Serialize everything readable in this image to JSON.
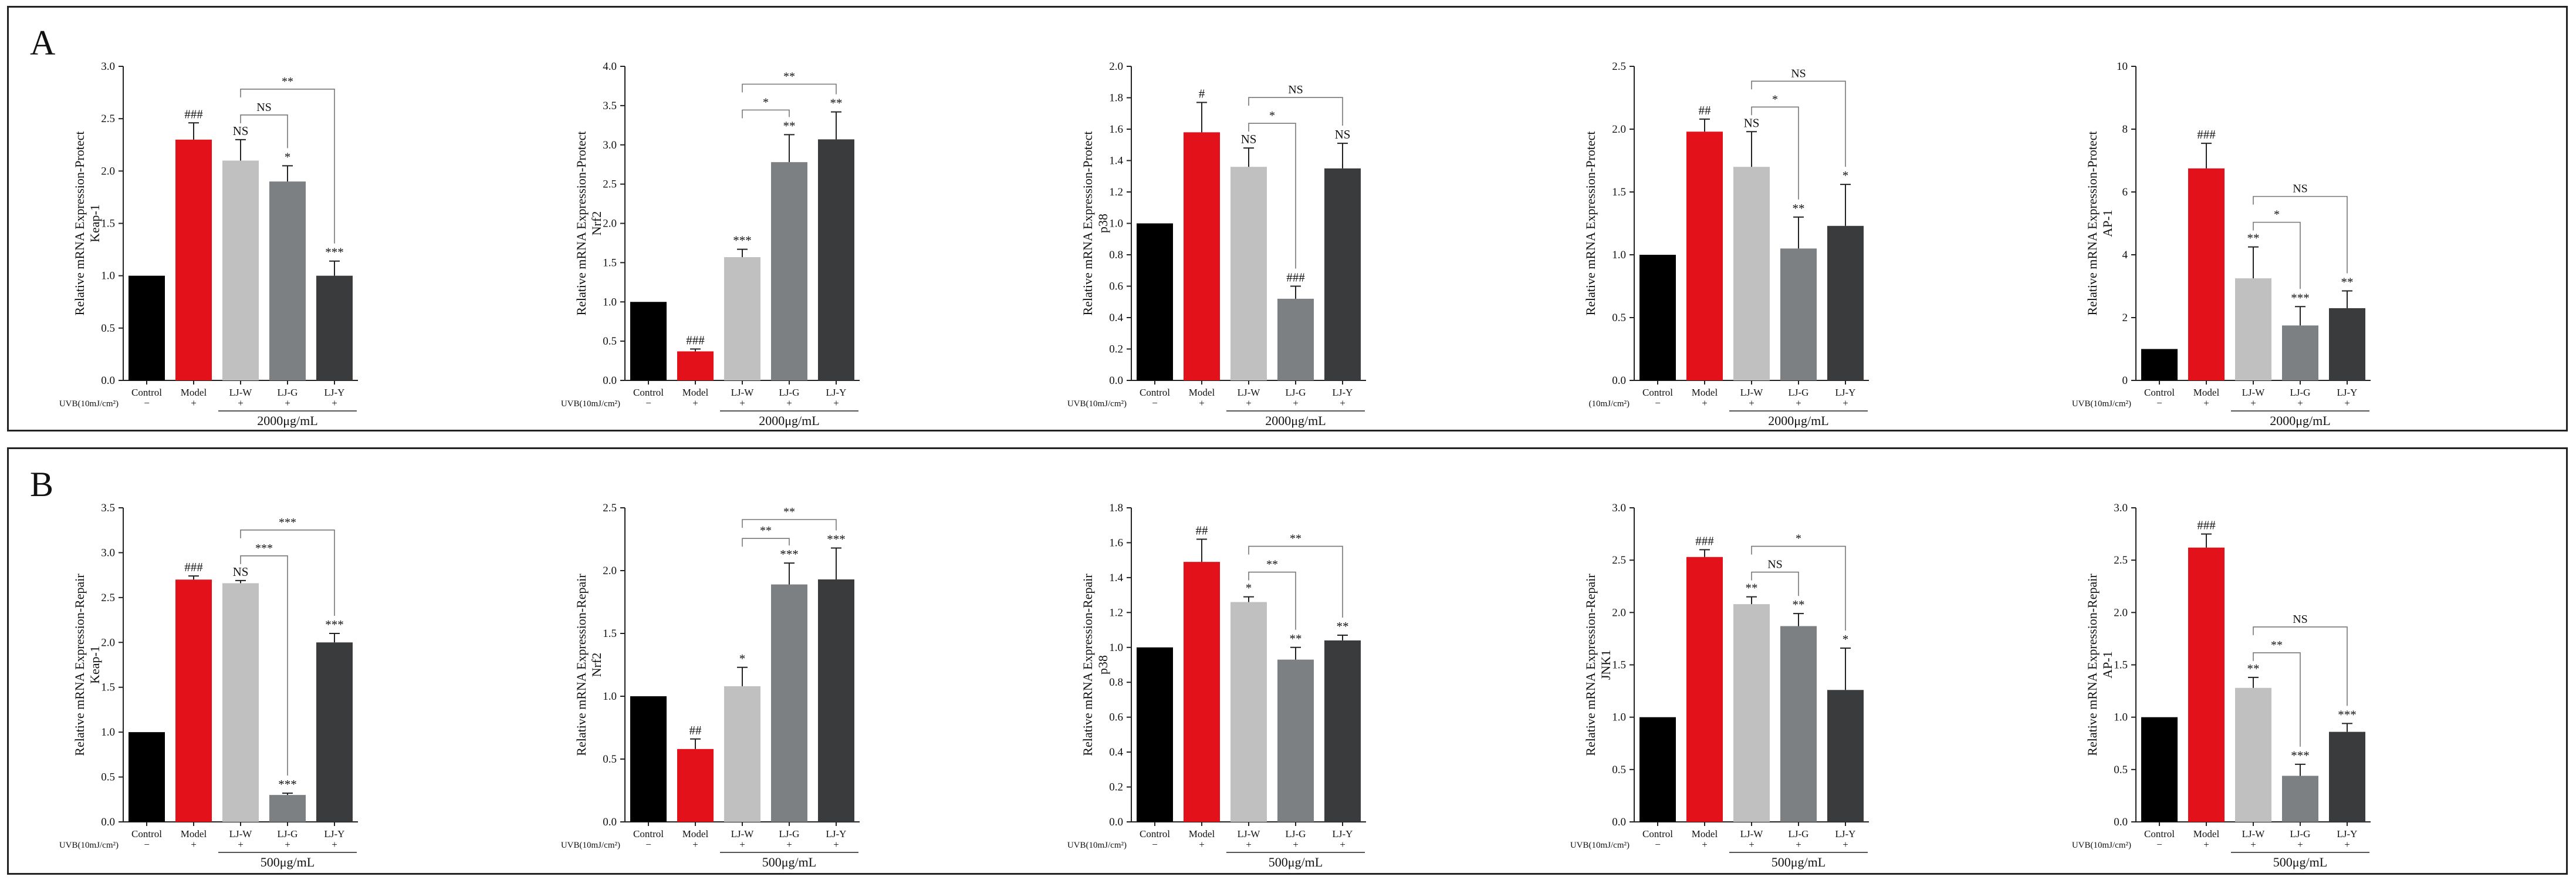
{
  "figure": {
    "panels": [
      {
        "letter": "A"
      },
      {
        "letter": "B"
      }
    ]
  },
  "chart_data": [
    {
      "panel": "A",
      "type": "bar",
      "title": "",
      "ylabel_lines": [
        "Relative mRNA Expression-Protect",
        "Keap-1"
      ],
      "ylim": [
        0,
        3.0
      ],
      "yticks": [
        "0.0",
        "0.5",
        "1.0",
        "1.5",
        "2.0",
        "2.5",
        "3.0"
      ],
      "categories": [
        "Control",
        "Model",
        "LJ-W",
        "LJ-G",
        "LJ-Y"
      ],
      "values": [
        1.0,
        2.3,
        2.1,
        1.9,
        1.0
      ],
      "errors": [
        0,
        0.16,
        0.2,
        0.15,
        0.14
      ],
      "colors": [
        "#000000",
        "#e2111a",
        "#c0c0c0",
        "#7d8082",
        "#3a3b3d"
      ],
      "point_labels": [
        "",
        "###",
        "NS",
        "*",
        "***"
      ],
      "treatment_label": "UVB(10mJ/cm²)",
      "treatment_signs": [
        "−",
        "+",
        "+",
        "+",
        "+"
      ],
      "dose_label": "2000μg/mL",
      "comparisons": [
        {
          "from": 2,
          "to": 3,
          "label": "NS"
        },
        {
          "from": 2,
          "to": 4,
          "label": "**"
        }
      ]
    },
    {
      "panel": "A",
      "type": "bar",
      "title": "",
      "ylabel_lines": [
        "Relative mRNA Expression-Protect",
        "Nrf2"
      ],
      "ylim": [
        0,
        4.0
      ],
      "yticks": [
        "0.0",
        "0.5",
        "1.0",
        "1.5",
        "2.0",
        "2.5",
        "3.0",
        "3.5",
        "4.0"
      ],
      "categories": [
        "Control",
        "Model",
        "LJ-W",
        "LJ-G",
        "LJ-Y"
      ],
      "values": [
        1.0,
        0.37,
        1.57,
        2.78,
        3.07
      ],
      "errors": [
        0,
        0.03,
        0.1,
        0.35,
        0.35
      ],
      "colors": [
        "#000000",
        "#e2111a",
        "#c0c0c0",
        "#7d8082",
        "#3a3b3d"
      ],
      "point_labels": [
        "",
        "###",
        "***",
        "**",
        "**"
      ],
      "treatment_label": "UVB(10mJ/cm²)",
      "treatment_signs": [
        "−",
        "+",
        "+",
        "+",
        "+"
      ],
      "dose_label": "2000μg/mL",
      "comparisons": [
        {
          "from": 2,
          "to": 3,
          "label": "*"
        },
        {
          "from": 2,
          "to": 4,
          "label": "**"
        }
      ]
    },
    {
      "panel": "A",
      "type": "bar",
      "title": "",
      "ylabel_lines": [
        "Relative mRNA Expression-Protect",
        "p38"
      ],
      "ylim": [
        0,
        2.0
      ],
      "yticks": [
        "0.0",
        "0.2",
        "0.4",
        "0.6",
        "0.8",
        "1.0",
        "1.2",
        "1.4",
        "1.6",
        "1.8",
        "2.0"
      ],
      "categories": [
        "Control",
        "Model",
        "LJ-W",
        "LJ-G",
        "LJ-Y"
      ],
      "values": [
        1.0,
        1.58,
        1.36,
        0.52,
        1.35
      ],
      "errors": [
        0,
        0.19,
        0.12,
        0.08,
        0.16
      ],
      "colors": [
        "#000000",
        "#e2111a",
        "#c0c0c0",
        "#7d8082",
        "#3a3b3d"
      ],
      "point_labels": [
        "",
        "#",
        "NS",
        "###",
        "NS"
      ],
      "treatment_label": "UVB(10mJ/cm²)",
      "treatment_signs": [
        "−",
        "+",
        "+",
        "+",
        "+"
      ],
      "dose_label": "2000μg/mL",
      "comparisons": [
        {
          "from": 2,
          "to": 3,
          "label": "*"
        },
        {
          "from": 2,
          "to": 4,
          "label": "NS"
        }
      ]
    },
    {
      "panel": "A",
      "type": "bar",
      "title": "",
      "ylabel_lines": [
        "Relative mRNA Expression-Protect",
        ""
      ],
      "ylim": [
        0,
        2.5
      ],
      "yticks": [
        "0.0",
        "0.5",
        "1.0",
        "1.5",
        "2.0",
        "2.5"
      ],
      "categories": [
        "Control",
        "Model",
        "LJ-W",
        "LJ-G",
        "LJ-Y"
      ],
      "values": [
        1.0,
        1.98,
        1.7,
        1.05,
        1.23
      ],
      "errors": [
        0,
        0.1,
        0.28,
        0.25,
        0.33
      ],
      "colors": [
        "#000000",
        "#e2111a",
        "#c0c0c0",
        "#7d8082",
        "#3a3b3d"
      ],
      "point_labels": [
        "",
        "##",
        "NS",
        "**",
        "*"
      ],
      "treatment_label": "(10mJ/cm²)",
      "treatment_signs": [
        "−",
        "+",
        "+",
        "+",
        "+"
      ],
      "dose_label": "2000μg/mL",
      "comparisons": [
        {
          "from": 2,
          "to": 3,
          "label": "*"
        },
        {
          "from": 2,
          "to": 4,
          "label": "NS"
        }
      ]
    },
    {
      "panel": "A",
      "type": "bar",
      "title": "",
      "ylabel_lines": [
        "Relative mRNA Expression-Protect",
        "AP-1"
      ],
      "ylim": [
        0,
        10
      ],
      "yticks": [
        "0",
        "2",
        "4",
        "6",
        "8",
        "10"
      ],
      "categories": [
        "Control",
        "Model",
        "LJ-W",
        "LJ-G",
        "LJ-Y"
      ],
      "values": [
        1.0,
        6.75,
        3.25,
        1.75,
        2.3
      ],
      "errors": [
        0,
        0.8,
        1.0,
        0.6,
        0.55
      ],
      "colors": [
        "#000000",
        "#e2111a",
        "#c0c0c0",
        "#7d8082",
        "#3a3b3d"
      ],
      "point_labels": [
        "",
        "###",
        "**",
        "***",
        "**"
      ],
      "treatment_label": "UVB(10mJ/cm²)",
      "treatment_signs": [
        "−",
        "+",
        "+",
        "+",
        "+"
      ],
      "dose_label": "2000μg/mL",
      "comparisons": [
        {
          "from": 2,
          "to": 3,
          "label": "*"
        },
        {
          "from": 2,
          "to": 4,
          "label": "NS"
        }
      ]
    },
    {
      "panel": "B",
      "type": "bar",
      "title": "",
      "ylabel_lines": [
        "Relative mRNA Expression-Repair",
        "Keap-1"
      ],
      "ylim": [
        0,
        3.5
      ],
      "yticks": [
        "0.0",
        "0.5",
        "1.0",
        "1.5",
        "2.0",
        "2.5",
        "3.0",
        "3.5"
      ],
      "categories": [
        "Control",
        "Model",
        "LJ-W",
        "LJ-G",
        "LJ-Y"
      ],
      "values": [
        1.0,
        2.7,
        2.66,
        0.3,
        2.0
      ],
      "errors": [
        0,
        0.04,
        0.03,
        0.02,
        0.1
      ],
      "colors": [
        "#000000",
        "#e2111a",
        "#c0c0c0",
        "#7d8082",
        "#3a3b3d"
      ],
      "point_labels": [
        "",
        "###",
        "NS",
        "***",
        "***"
      ],
      "treatment_label": "UVB(10mJ/cm²)",
      "treatment_signs": [
        "−",
        "+",
        "+",
        "+",
        "+"
      ],
      "dose_label": "500μg/mL",
      "comparisons": [
        {
          "from": 2,
          "to": 3,
          "label": "***"
        },
        {
          "from": 2,
          "to": 4,
          "label": "***"
        }
      ]
    },
    {
      "panel": "B",
      "type": "bar",
      "title": "",
      "ylabel_lines": [
        "Relative mRNA Expression-Repair",
        "Nrf2"
      ],
      "ylim": [
        0,
        2.5
      ],
      "yticks": [
        "0.0",
        "0.5",
        "1.0",
        "1.5",
        "2.0",
        "2.5"
      ],
      "categories": [
        "Control",
        "Model",
        "LJ-W",
        "LJ-G",
        "LJ-Y"
      ],
      "values": [
        1.0,
        0.58,
        1.08,
        1.89,
        1.93
      ],
      "errors": [
        0,
        0.08,
        0.15,
        0.17,
        0.25
      ],
      "colors": [
        "#000000",
        "#e2111a",
        "#c0c0c0",
        "#7d8082",
        "#3a3b3d"
      ],
      "point_labels": [
        "",
        "##",
        "*",
        "***",
        "***"
      ],
      "treatment_label": "UVB(10mJ/cm²)",
      "treatment_signs": [
        "−",
        "+",
        "+",
        "+",
        "+"
      ],
      "dose_label": "500μg/mL",
      "comparisons": [
        {
          "from": 2,
          "to": 3,
          "label": "**"
        },
        {
          "from": 2,
          "to": 4,
          "label": "**"
        }
      ]
    },
    {
      "panel": "B",
      "type": "bar",
      "title": "",
      "ylabel_lines": [
        "Relative mRNA Expression-Repair",
        "p38"
      ],
      "ylim": [
        0,
        1.8
      ],
      "yticks": [
        "0.0",
        "0.2",
        "0.4",
        "0.6",
        "0.8",
        "1.0",
        "1.2",
        "1.4",
        "1.6",
        "1.8"
      ],
      "categories": [
        "Control",
        "Model",
        "LJ-W",
        "LJ-G",
        "LJ-Y"
      ],
      "values": [
        1.0,
        1.49,
        1.26,
        0.93,
        1.04
      ],
      "errors": [
        0,
        0.13,
        0.03,
        0.07,
        0.03
      ],
      "colors": [
        "#000000",
        "#e2111a",
        "#c0c0c0",
        "#7d8082",
        "#3a3b3d"
      ],
      "point_labels": [
        "",
        "##",
        "*",
        "**",
        "**"
      ],
      "treatment_label": "UVB(10mJ/cm²)",
      "treatment_signs": [
        "−",
        "+",
        "+",
        "+",
        "+"
      ],
      "dose_label": "500μg/mL",
      "comparisons": [
        {
          "from": 2,
          "to": 3,
          "label": "**"
        },
        {
          "from": 2,
          "to": 4,
          "label": "**"
        }
      ]
    },
    {
      "panel": "B",
      "type": "bar",
      "title": "",
      "ylabel_lines": [
        "Relative mRNA Expression-Repair",
        "JNK1"
      ],
      "ylim": [
        0,
        3.0
      ],
      "yticks": [
        "0.0",
        "0.5",
        "1.0",
        "1.5",
        "2.0",
        "2.5",
        "3.0"
      ],
      "categories": [
        "Control",
        "Model",
        "LJ-W",
        "LJ-G",
        "LJ-Y"
      ],
      "values": [
        1.0,
        2.53,
        2.08,
        1.87,
        1.26
      ],
      "errors": [
        0,
        0.07,
        0.07,
        0.12,
        0.4
      ],
      "colors": [
        "#000000",
        "#e2111a",
        "#c0c0c0",
        "#7d8082",
        "#3a3b3d"
      ],
      "point_labels": [
        "",
        "###",
        "**",
        "**",
        "*"
      ],
      "treatment_label": "UVB(10mJ/cm²)",
      "treatment_signs": [
        "−",
        "+",
        "+",
        "+",
        "+"
      ],
      "dose_label": "500μg/mL",
      "comparisons": [
        {
          "from": 2,
          "to": 3,
          "label": "NS"
        },
        {
          "from": 2,
          "to": 4,
          "label": "*"
        }
      ]
    },
    {
      "panel": "B",
      "type": "bar",
      "title": "",
      "ylabel_lines": [
        "Relative mRNA Expression-Repair",
        "AP-1"
      ],
      "ylim": [
        0,
        3.0
      ],
      "yticks": [
        "0.0",
        "0.5",
        "1.0",
        "1.5",
        "2.0",
        "2.5",
        "3.0"
      ],
      "categories": [
        "Control",
        "Model",
        "LJ-W",
        "LJ-G",
        "LJ-Y"
      ],
      "values": [
        1.0,
        2.62,
        1.28,
        0.44,
        0.86
      ],
      "errors": [
        0,
        0.13,
        0.1,
        0.11,
        0.08
      ],
      "colors": [
        "#000000",
        "#e2111a",
        "#c0c0c0",
        "#7d8082",
        "#3a3b3d"
      ],
      "point_labels": [
        "",
        "###",
        "**",
        "***",
        "***"
      ],
      "treatment_label": "UVB(10mJ/cm²)",
      "treatment_signs": [
        "−",
        "+",
        "+",
        "+",
        "+"
      ],
      "dose_label": "500μg/mL",
      "comparisons": [
        {
          "from": 2,
          "to": 3,
          "label": "**"
        },
        {
          "from": 2,
          "to": 4,
          "label": "NS"
        }
      ]
    }
  ]
}
